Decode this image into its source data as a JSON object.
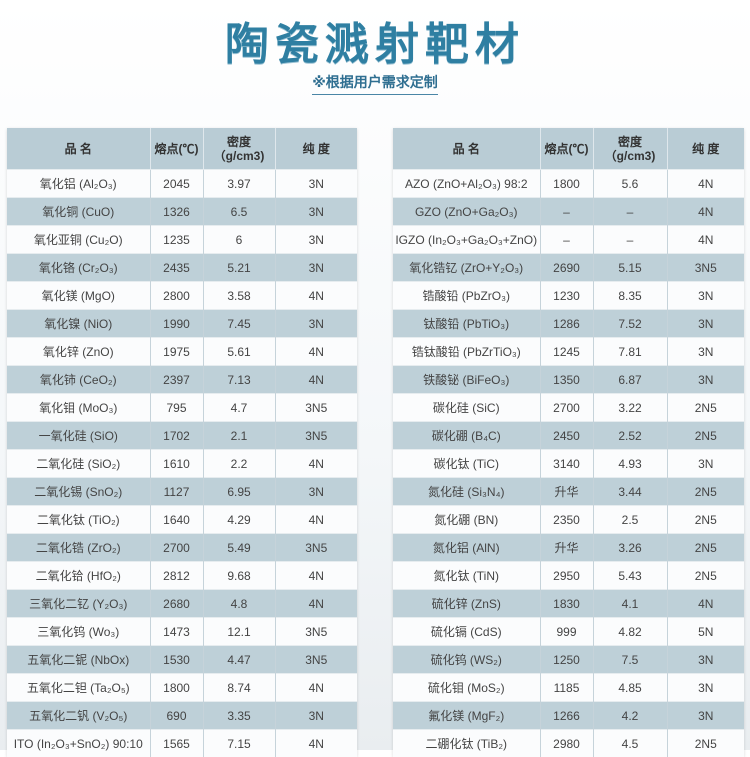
{
  "title": "陶瓷溅射靶材",
  "subtitle": "※根据用户需求定制",
  "headers": {
    "name": "品 名",
    "melting_point": "熔点(℃)",
    "density": "密度（g/cm3)",
    "purity": "纯 度"
  },
  "colors": {
    "title": "#2f7fa2",
    "row_shade": "#bed0d8",
    "header": "#b9ccd5"
  },
  "left_table": [
    [
      "氧化铝 (Al₂O₃)",
      "2045",
      "3.97",
      "3N"
    ],
    [
      "氧化铜 (CuO)",
      "1326",
      "6.5",
      "3N"
    ],
    [
      "氧化亚铜 (Cu₂O)",
      "1235",
      "6",
      "3N"
    ],
    [
      "氧化铬 (Cr₂O₃)",
      "2435",
      "5.21",
      "3N"
    ],
    [
      "氧化镁 (MgO)",
      "2800",
      "3.58",
      "4N"
    ],
    [
      "氧化镍 (NiO)",
      "1990",
      "7.45",
      "3N"
    ],
    [
      "氧化锌 (ZnO)",
      "1975",
      "5.61",
      "4N"
    ],
    [
      "氧化铈 (CeO₂)",
      "2397",
      "7.13",
      "4N"
    ],
    [
      "氧化钼 (MoO₃)",
      "795",
      "4.7",
      "3N5"
    ],
    [
      "一氧化硅 (SiO)",
      "1702",
      "2.1",
      "3N5"
    ],
    [
      "二氧化硅 (SiO₂)",
      "1610",
      "2.2",
      "4N"
    ],
    [
      "二氧化锡 (SnO₂)",
      "1127",
      "6.95",
      "3N"
    ],
    [
      "二氧化钛 (TiO₂)",
      "1640",
      "4.29",
      "4N"
    ],
    [
      "二氧化锆 (ZrO₂)",
      "2700",
      "5.49",
      "3N5"
    ],
    [
      "二氧化铪 (HfO₂)",
      "2812",
      "9.68",
      "4N"
    ],
    [
      "三氧化二钇 (Y₂O₃)",
      "2680",
      "4.8",
      "4N"
    ],
    [
      "三氧化钨 (Wo₃)",
      "1473",
      "12.1",
      "3N5"
    ],
    [
      "五氧化二铌 (NbOx)",
      "1530",
      "4.47",
      "3N5"
    ],
    [
      "五氧化二钽 (Ta₂O₅)",
      "1800",
      "8.74",
      "4N"
    ],
    [
      "五氧化二钒 (V₂O₅)",
      "690",
      "3.35",
      "3N"
    ],
    [
      "ITO (In₂O₃+SnO₂) 90:10",
      "1565",
      "7.15",
      "4N"
    ]
  ],
  "right_table": [
    [
      "AZO (ZnO+Al₂O₃) 98:2",
      "1800",
      "5.6",
      "4N"
    ],
    [
      "GZO (ZnO+Ga₂O₃)",
      "–",
      "–",
      "4N"
    ],
    [
      "IGZO (In₂O₃+Ga₂O₃+ZnO)",
      "–",
      "–",
      "4N"
    ],
    [
      "氧化锆钇 (ZrO+Y₂O₃)",
      "2690",
      "5.15",
      "3N5"
    ],
    [
      "锆酸铅 (PbZrO₃)",
      "1230",
      "8.35",
      "3N"
    ],
    [
      "钛酸铅 (PbTiO₃)",
      "1286",
      "7.52",
      "3N"
    ],
    [
      "锆钛酸铅 (PbZrTiO₃)",
      "1245",
      "7.81",
      "3N"
    ],
    [
      "铁酸铋 (BiFeO₃)",
      "1350",
      "6.87",
      "3N"
    ],
    [
      "碳化硅 (SiC)",
      "2700",
      "3.22",
      "2N5"
    ],
    [
      "碳化硼 (B₄C)",
      "2450",
      "2.52",
      "2N5"
    ],
    [
      "碳化钛 (TiC)",
      "3140",
      "4.93",
      "3N"
    ],
    [
      "氮化硅 (Si₃N₄)",
      "升华",
      "3.44",
      "2N5"
    ],
    [
      "氮化硼 (BN)",
      "2350",
      "2.5",
      "2N5"
    ],
    [
      "氮化铝 (AlN)",
      "升华",
      "3.26",
      "2N5"
    ],
    [
      "氮化钛 (TiN)",
      "2950",
      "5.43",
      "2N5"
    ],
    [
      "硫化锌 (ZnS)",
      "1830",
      "4.1",
      "4N"
    ],
    [
      "硫化镉 (CdS)",
      "999",
      "4.82",
      "5N"
    ],
    [
      "硫化钨 (WS₂)",
      "1250",
      "7.5",
      "3N"
    ],
    [
      "硫化钼 (MoS₂)",
      "1185",
      "4.85",
      "3N"
    ],
    [
      "氟化镁 (MgF₂)",
      "1266",
      "4.2",
      "3N"
    ],
    [
      "二硼化钛 (TiB₂)",
      "2980",
      "4.5",
      "2N5"
    ]
  ]
}
